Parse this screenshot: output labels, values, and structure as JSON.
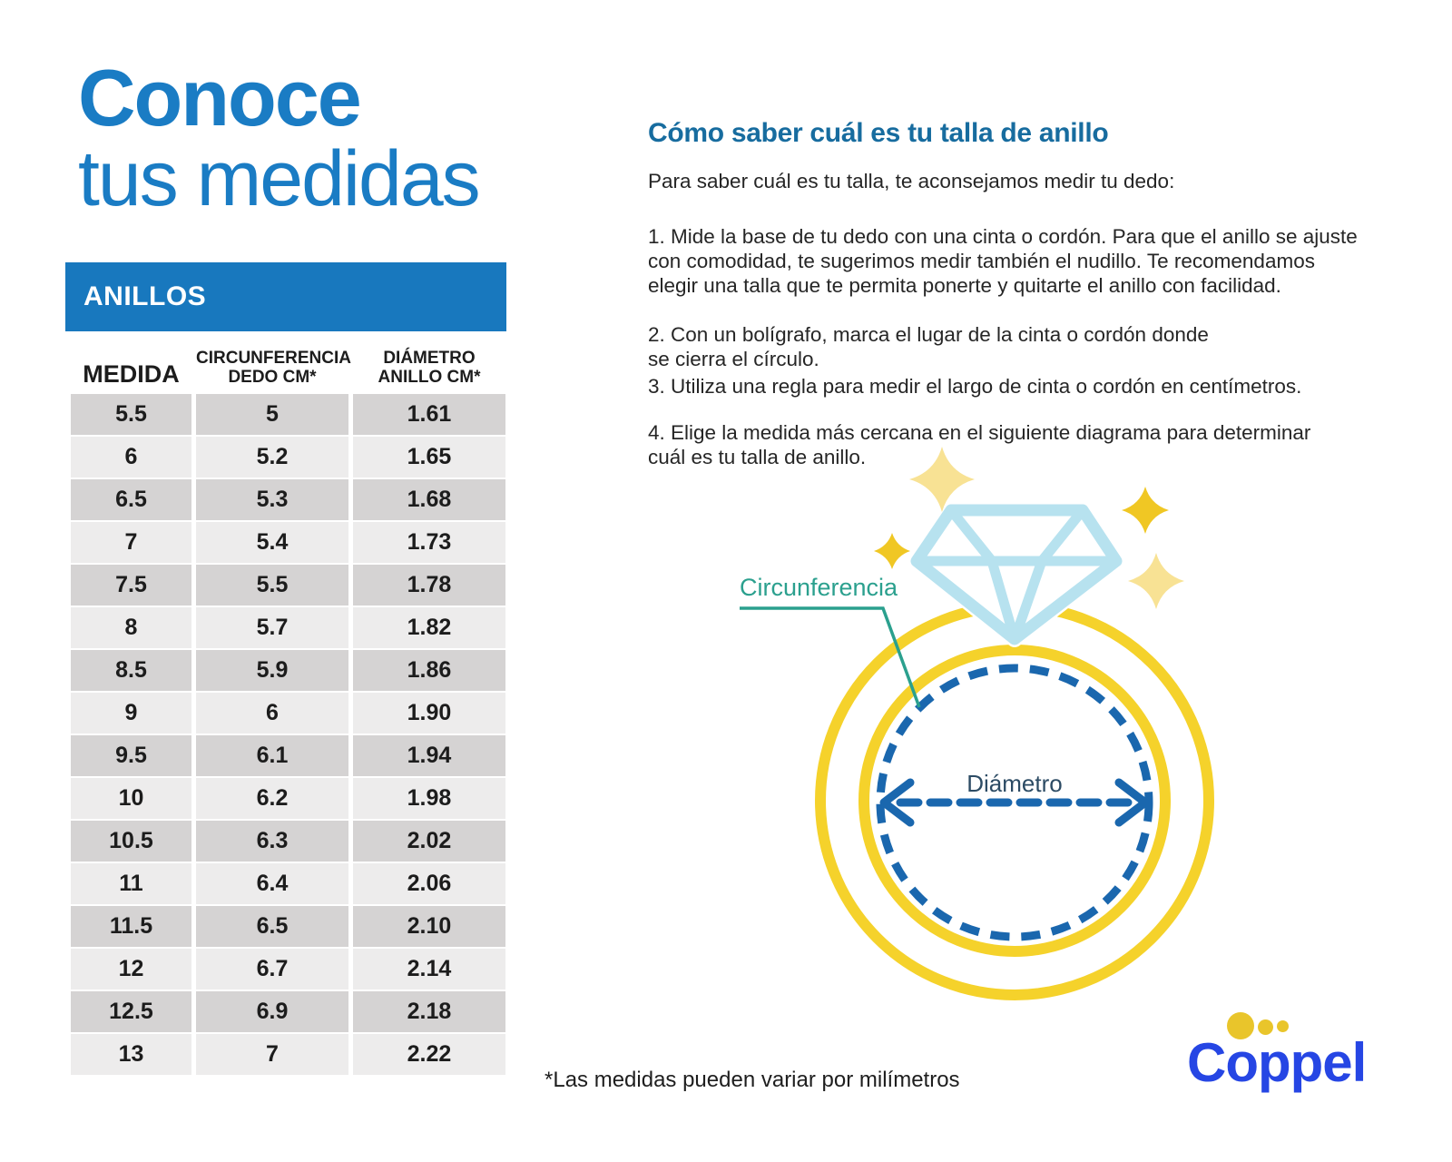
{
  "title": {
    "line1": "Conoce",
    "line2": "tus medidas"
  },
  "table": {
    "header": "ANILLOS",
    "columns": [
      "MEDIDA",
      "CIRCUNFERENCIA\nDEDO CM*",
      "DIÁMETRO\nANILLO CM*"
    ],
    "rows": [
      [
        "5.5",
        "5",
        "1.61"
      ],
      [
        "6",
        "5.2",
        "1.65"
      ],
      [
        "6.5",
        "5.3",
        "1.68"
      ],
      [
        "7",
        "5.4",
        "1.73"
      ],
      [
        "7.5",
        "5.5",
        "1.78"
      ],
      [
        "8",
        "5.7",
        "1.82"
      ],
      [
        "8.5",
        "5.9",
        "1.86"
      ],
      [
        "9",
        "6",
        "1.90"
      ],
      [
        "9.5",
        "6.1",
        "1.94"
      ],
      [
        "10",
        "6.2",
        "1.98"
      ],
      [
        "10.5",
        "6.3",
        "2.02"
      ],
      [
        "11",
        "6.4",
        "2.06"
      ],
      [
        "11.5",
        "6.5",
        "2.10"
      ],
      [
        "12",
        "6.7",
        "2.14"
      ],
      [
        "12.5",
        "6.9",
        "2.18"
      ],
      [
        "13",
        "7",
        "2.22"
      ]
    ]
  },
  "instructions": {
    "heading": "Cómo saber cuál es tu talla de anillo",
    "intro": "Para saber cuál es tu talla, te aconsejamos medir tu dedo:",
    "steps": [
      "1. Mide la base de tu dedo con una cinta o cordón. Para que el anillo se ajuste\ncon comodidad, te sugerimos medir también el nudillo. Te recomendamos\nelegir una talla que te permita ponerte y quitarte el anillo con facilidad.",
      "2. Con un bolígrafo, marca el lugar de la cinta o cordón donde\nse cierra el círculo.",
      "3. Utiliza una regla para medir el largo de cinta o cordón en centímetros.",
      "4. Elige la medida más cercana en el siguiente diagrama para determinar\ncuál es tu talla de anillo."
    ]
  },
  "diagram": {
    "circumference_label": "Circunferencia",
    "diameter_label": "Diámetro"
  },
  "footnote": "*Las medidas pueden variar por milímetros",
  "logo": {
    "text": "Coppel"
  },
  "colors": {
    "title_blue": "#1A7CC4",
    "bar_blue": "#1878BE",
    "heading_blue": "#176C9F",
    "text_dark": "#262626",
    "row_dark": "#D5D3D3",
    "row_light": "#EDECEC",
    "ring_yellow": "#F5D22B",
    "diamond_blue": "#B7E2EF",
    "dash_blue": "#1A67AE",
    "teal": "#2BA08E",
    "diameter_text": "#2C4B64",
    "sparkle_gold": "#F0C724",
    "sparkle_pale": "#F8E294",
    "coppel_blue": "#2646E4",
    "coppel_yellow": "#E9C52B"
  }
}
